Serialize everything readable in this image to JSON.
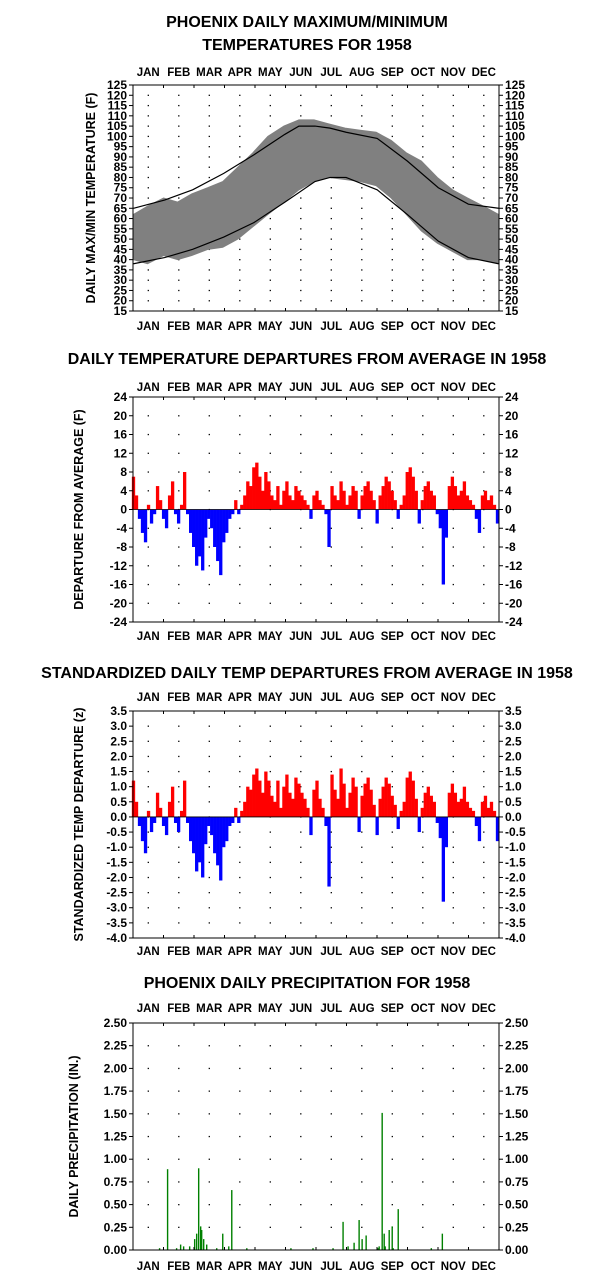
{
  "chart_data": [
    {
      "id": "maxmin",
      "type": "area",
      "title_lines": [
        "PHOENIX DAILY MAXIMUM/MINIMUM",
        "TEMPERATURES FOR 1958"
      ],
      "ylabel": "DAILY MAX/MIN TEMPERATURE  (F)",
      "ylim": [
        15,
        125
      ],
      "yticks": [
        15,
        20,
        25,
        30,
        35,
        40,
        45,
        50,
        55,
        60,
        65,
        70,
        75,
        80,
        85,
        90,
        95,
        100,
        105,
        110,
        115,
        120,
        125
      ],
      "months": [
        "JAN",
        "FEB",
        "MAR",
        "APR",
        "MAY",
        "JUN",
        "JUL",
        "AUG",
        "SEP",
        "OCT",
        "NOV",
        "DEC"
      ],
      "series": [
        {
          "role": "range_band",
          "color": "#808080",
          "x_day": [
            1,
            15,
            31,
            45,
            59,
            75,
            90,
            105,
            120,
            135,
            151,
            166,
            181,
            196,
            212,
            227,
            243,
            258,
            273,
            288,
            304,
            319,
            334,
            350,
            365
          ],
          "max": [
            62,
            66,
            70,
            68,
            72,
            75,
            78,
            85,
            92,
            100,
            105,
            108,
            108,
            106,
            104,
            103,
            102,
            98,
            92,
            88,
            80,
            74,
            70,
            66,
            62
          ],
          "min": [
            40,
            38,
            42,
            40,
            42,
            45,
            46,
            50,
            56,
            62,
            68,
            74,
            78,
            80,
            79,
            78,
            76,
            70,
            62,
            54,
            48,
            44,
            40,
            40,
            38
          ]
        },
        {
          "role": "normal_max",
          "color": "#000000",
          "x_day": [
            1,
            32,
            60,
            91,
            121,
            152,
            166,
            182,
            197,
            213,
            244,
            274,
            305,
            335,
            365
          ],
          "values": [
            65,
            69,
            74,
            82,
            91,
            101,
            105,
            105,
            104,
            102,
            99,
            88,
            75,
            67,
            65
          ]
        },
        {
          "role": "normal_min",
          "color": "#000000",
          "x_day": [
            1,
            32,
            60,
            91,
            121,
            152,
            182,
            197,
            213,
            244,
            274,
            305,
            335,
            365
          ],
          "values": [
            38,
            41,
            45,
            51,
            58,
            68,
            78,
            80,
            80,
            74,
            62,
            49,
            41,
            38
          ]
        }
      ]
    },
    {
      "id": "departures",
      "type": "bar",
      "title": "DAILY TEMPERATURE DEPARTURES FROM AVERAGE IN 1958",
      "ylabel": "DEPARTURE FROM AVERAGE  (F)",
      "ylim": [
        -24,
        24
      ],
      "yticks": [
        -24,
        -20,
        -16,
        -12,
        -8,
        -4,
        0,
        4,
        8,
        12,
        16,
        20,
        24
      ],
      "months": [
        "JAN",
        "FEB",
        "MAR",
        "APR",
        "MAY",
        "JUN",
        "JUL",
        "AUG",
        "SEP",
        "OCT",
        "NOV",
        "DEC"
      ],
      "colors": {
        "positive": "#ff0000",
        "negative": "#0000ff"
      },
      "x_day": [
        1,
        4,
        7,
        10,
        13,
        16,
        19,
        22,
        25,
        28,
        31,
        34,
        37,
        40,
        43,
        46,
        49,
        52,
        55,
        58,
        61,
        64,
        67,
        70,
        73,
        76,
        79,
        82,
        85,
        88,
        91,
        94,
        97,
        100,
        103,
        106,
        109,
        112,
        115,
        118,
        121,
        124,
        127,
        130,
        133,
        136,
        139,
        142,
        145,
        148,
        151,
        154,
        157,
        160,
        163,
        166,
        169,
        172,
        175,
        178,
        181,
        184,
        187,
        190,
        193,
        196,
        199,
        202,
        205,
        208,
        211,
        214,
        217,
        220,
        223,
        226,
        229,
        232,
        235,
        238,
        241,
        244,
        247,
        250,
        253,
        256,
        259,
        262,
        265,
        268,
        271,
        274,
        277,
        280,
        283,
        286,
        289,
        292,
        295,
        298,
        301,
        304,
        307,
        310,
        313,
        316,
        319,
        322,
        325,
        328,
        331,
        334,
        337,
        340,
        343,
        346,
        349,
        352,
        355,
        358,
        361,
        364
      ],
      "values": [
        7,
        3,
        -2,
        -5,
        -7,
        1,
        -3,
        -1,
        5,
        2,
        -2,
        -4,
        3,
        6,
        -1,
        -3,
        1,
        8,
        -1,
        -5,
        -8,
        -12,
        -10,
        -13,
        -6,
        -2,
        -4,
        -8,
        -11,
        -14,
        -7,
        -5,
        -2,
        -1,
        2,
        -1,
        1,
        3,
        6,
        5,
        9,
        10,
        7,
        4,
        8,
        6,
        3,
        2,
        5,
        1,
        4,
        6,
        3,
        2,
        5,
        4,
        3,
        2,
        1,
        -2,
        3,
        4,
        2,
        1,
        -1,
        -8,
        5,
        3,
        2,
        6,
        4,
        1,
        3,
        5,
        4,
        -2,
        3,
        5,
        6,
        4,
        2,
        -3,
        3,
        5,
        7,
        6,
        4,
        2,
        -2,
        1,
        3,
        8,
        9,
        7,
        4,
        -3,
        2,
        5,
        6,
        4,
        3,
        -1,
        -4,
        -16,
        -6,
        5,
        7,
        5,
        3,
        4,
        6,
        3,
        2,
        1,
        -2,
        -5,
        3,
        4,
        2,
        3,
        1,
        -3
      ]
    },
    {
      "id": "standardized",
      "type": "bar",
      "title": "STANDARDIZED DAILY TEMP DEPARTURES FROM AVERAGE IN 1958",
      "ylabel": "STANDARDIZED TEMP DEPARTURE  (z)",
      "ylim": [
        -4.0,
        3.5
      ],
      "yticks": [
        -4.0,
        -3.5,
        -3.0,
        -2.5,
        -2.0,
        -1.5,
        -1.0,
        -0.5,
        0.0,
        0.5,
        1.0,
        1.5,
        2.0,
        2.5,
        3.0,
        3.5
      ],
      "months": [
        "JAN",
        "FEB",
        "MAR",
        "APR",
        "MAY",
        "JUN",
        "JUL",
        "AUG",
        "SEP",
        "OCT",
        "NOV",
        "DEC"
      ],
      "colors": {
        "positive": "#ff0000",
        "negative": "#0000ff"
      },
      "x_day": [
        1,
        4,
        7,
        10,
        13,
        16,
        19,
        22,
        25,
        28,
        31,
        34,
        37,
        40,
        43,
        46,
        49,
        52,
        55,
        58,
        61,
        64,
        67,
        70,
        73,
        76,
        79,
        82,
        85,
        88,
        91,
        94,
        97,
        100,
        103,
        106,
        109,
        112,
        115,
        118,
        121,
        124,
        127,
        130,
        133,
        136,
        139,
        142,
        145,
        148,
        151,
        154,
        157,
        160,
        163,
        166,
        169,
        172,
        175,
        178,
        181,
        184,
        187,
        190,
        193,
        196,
        199,
        202,
        205,
        208,
        211,
        214,
        217,
        220,
        223,
        226,
        229,
        232,
        235,
        238,
        241,
        244,
        247,
        250,
        253,
        256,
        259,
        262,
        265,
        268,
        271,
        274,
        277,
        280,
        283,
        286,
        289,
        292,
        295,
        298,
        301,
        304,
        307,
        310,
        313,
        316,
        319,
        322,
        325,
        328,
        331,
        334,
        337,
        340,
        343,
        346,
        349,
        352,
        355,
        358,
        361,
        364
      ],
      "values": [
        1.2,
        0.5,
        -0.3,
        -0.8,
        -1.2,
        0.2,
        -0.5,
        -0.2,
        0.8,
        0.3,
        -0.3,
        -0.6,
        0.5,
        1.0,
        -0.2,
        -0.5,
        0.2,
        1.2,
        -0.2,
        -0.8,
        -1.2,
        -1.8,
        -1.5,
        -2.0,
        -0.9,
        -0.3,
        -0.6,
        -1.2,
        -1.6,
        -2.1,
        -1.0,
        -0.8,
        -0.3,
        -0.2,
        0.3,
        -0.2,
        0.2,
        0.5,
        1.0,
        0.9,
        1.4,
        1.6,
        1.2,
        0.8,
        1.5,
        1.2,
        0.7,
        0.5,
        1.2,
        0.3,
        1.0,
        1.4,
        0.8,
        0.6,
        1.3,
        1.1,
        0.8,
        0.6,
        0.3,
        -0.6,
        0.9,
        1.2,
        0.6,
        0.3,
        -0.3,
        -2.3,
        1.4,
        0.9,
        0.6,
        1.6,
        1.1,
        0.3,
        0.8,
        1.3,
        1.0,
        -0.5,
        0.7,
        1.1,
        1.3,
        0.9,
        0.4,
        -0.6,
        0.6,
        1.0,
        1.3,
        1.1,
        0.7,
        0.4,
        -0.4,
        0.2,
        0.5,
        1.3,
        1.5,
        1.2,
        0.6,
        -0.5,
        0.3,
        0.8,
        1.0,
        0.7,
        0.5,
        -0.2,
        -0.7,
        -2.8,
        -1.0,
        0.8,
        1.1,
        0.8,
        0.5,
        0.6,
        1.0,
        0.5,
        0.3,
        0.2,
        -0.3,
        -0.8,
        0.5,
        0.7,
        0.3,
        0.5,
        0.2,
        -0.8
      ]
    },
    {
      "id": "precip",
      "type": "bar",
      "title": "PHOENIX DAILY PRECIPITATION FOR 1958",
      "ylabel": "DAILY PRECIPITATION (IN.)",
      "ylim": [
        0.0,
        2.5
      ],
      "yticks": [
        0.0,
        0.25,
        0.5,
        0.75,
        1.0,
        1.25,
        1.5,
        1.75,
        2.0,
        2.25,
        2.5
      ],
      "months": [
        "JAN",
        "FEB",
        "MAR",
        "APR",
        "MAY",
        "JUN",
        "JUL",
        "AUG",
        "SEP",
        "OCT",
        "NOV",
        "DEC"
      ],
      "colors": {
        "bar": "#008000"
      },
      "x_day": [
        27,
        35,
        44,
        48,
        51,
        57,
        62,
        64,
        66,
        68,
        69,
        71,
        74,
        84,
        90,
        96,
        99,
        114,
        158,
        180,
        200,
        210,
        215,
        221,
        226,
        229,
        233,
        245,
        246,
        249,
        251,
        252,
        256,
        259,
        260,
        265,
        298,
        309
      ],
      "values": [
        0.02,
        0.89,
        0.02,
        0.06,
        0.04,
        0.04,
        0.12,
        0.18,
        0.9,
        0.26,
        0.22,
        0.12,
        0.06,
        0.02,
        0.18,
        0.04,
        0.66,
        0.02,
        0.02,
        0.02,
        0.02,
        0.31,
        0.04,
        0.08,
        0.33,
        0.12,
        0.16,
        0.02,
        0.04,
        1.51,
        0.18,
        0.04,
        0.22,
        0.26,
        0.02,
        0.45,
        0.02,
        0.18
      ]
    }
  ]
}
